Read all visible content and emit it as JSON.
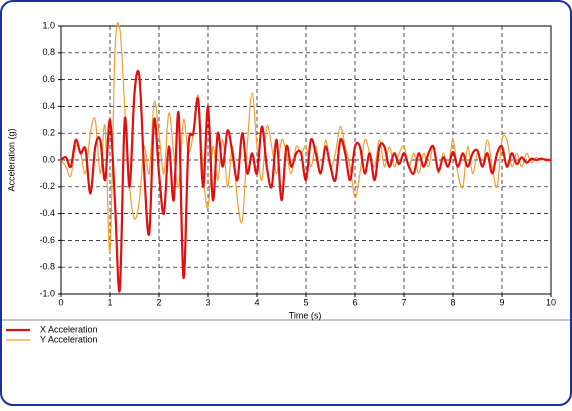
{
  "chart_data": {
    "type": "line",
    "x_label": "Time (s)",
    "y_label": "Acceleration (g)",
    "xlim": [
      0,
      10
    ],
    "ylim": [
      -1.0,
      1.0
    ],
    "xticks": [
      0,
      1,
      2,
      3,
      4,
      5,
      6,
      7,
      8,
      9,
      10
    ],
    "yticks": [
      {
        "value": -1.0,
        "label": "-1.0"
      },
      -0.8,
      -0.6,
      -0.4,
      -0.2,
      {
        "value": 0,
        "label": "0.0"
      },
      0.2,
      0.4,
      0.6,
      0.8,
      {
        "value": 1.0,
        "label": "1.0"
      }
    ],
    "grid": true,
    "legend": "bottom-left",
    "x": [
      0,
      0.1,
      0.2,
      0.3,
      0.4,
      0.5,
      0.6,
      0.7,
      0.8,
      0.9,
      1,
      1.1,
      1.2,
      1.3,
      1.4,
      1.5,
      1.6,
      1.7,
      1.8,
      1.9,
      2,
      2.1,
      2.2,
      2.3,
      2.4,
      2.5,
      2.6,
      2.7,
      2.8,
      2.9,
      3,
      3.1,
      3.2,
      3.3,
      3.4,
      3.5,
      3.6,
      3.7,
      3.8,
      3.9,
      4,
      4.1,
      4.2,
      4.3,
      4.4,
      4.5,
      4.6,
      4.7,
      4.8,
      4.9,
      5,
      5.1,
      5.2,
      5.3,
      5.4,
      5.5,
      5.6,
      5.7,
      5.8,
      5.9,
      6,
      6.1,
      6.2,
      6.3,
      6.4,
      6.5,
      6.6,
      6.7,
      6.8,
      6.9,
      7,
      7.1,
      7.2,
      7.3,
      7.4,
      7.5,
      7.6,
      7.7,
      7.8,
      7.9,
      8,
      8.1,
      8.2,
      8.3,
      8.4,
      8.5,
      8.6,
      8.7,
      8.8,
      8.9,
      9,
      9.1,
      9.2,
      9.3,
      9.4,
      9.5,
      9.6,
      9.7,
      9.8,
      9.9,
      10
    ],
    "series": [
      {
        "name": "X Acceleration",
        "color": "#e01010",
        "width": 2.2,
        "values": [
          0,
          0.02,
          -0.05,
          0.15,
          0.05,
          0.08,
          -0.25,
          0.1,
          0.15,
          -0.15,
          0.3,
          -0.3,
          -0.97,
          0.3,
          -0.2,
          0.5,
          0.62,
          -0.1,
          -0.55,
          0.3,
          -0.1,
          -0.4,
          0.1,
          -0.3,
          0.35,
          -0.88,
          0.1,
          0.2,
          0.45,
          -0.2,
          0.4,
          -0.3,
          0.2,
          -0.05,
          0.22,
          0.05,
          -0.15,
          0.2,
          -0.1,
          0.05,
          -0.1,
          0.25,
          -0.05,
          -0.2,
          0.15,
          -0.3,
          0.1,
          -0.05,
          0.05,
          0.05,
          -0.15,
          0.15,
          0.05,
          -0.1,
          0.1,
          -0.05,
          -0.15,
          0.15,
          0.05,
          -0.15,
          0.1,
          0.1,
          -0.1,
          0.05,
          -0.15,
          0.1,
          0.1,
          -0.05,
          0.05,
          -0.03,
          0.05,
          -0.05,
          -0.1,
          0.05,
          -0.05,
          0.05,
          0.1,
          -0.08,
          0.02,
          -0.05,
          0.06,
          -0.05,
          0.05,
          -0.05,
          0.05,
          0.07,
          -0.05,
          0.05,
          -0.1,
          0.05,
          0.1,
          -0.05,
          0.05,
          -0.03,
          0.02,
          -0.02,
          0.01,
          0,
          0.01,
          0,
          0
        ]
      },
      {
        "name": "Y Acceleration",
        "color": "#f0a030",
        "width": 1.2,
        "values": [
          0,
          -0.05,
          -0.12,
          0.1,
          0.05,
          -0.1,
          0.2,
          0.3,
          -0.1,
          0.25,
          -0.68,
          0.8,
          0.98,
          0.4,
          -0.2,
          -0.44,
          -0.3,
          0.1,
          -0.1,
          0.43,
          0.2,
          -0.1,
          0.35,
          0.05,
          -0.2,
          0.3,
          0.05,
          0.2,
          0.48,
          -0.1,
          -0.35,
          0.1,
          -0.15,
          0.15,
          -0.2,
          0.1,
          -0.3,
          -0.45,
          0.1,
          0.5,
          0.1,
          -0.15,
          0.25,
          0.1,
          -0.1,
          0.15,
          0.05,
          -0.1,
          0.1,
          0.05,
          0.1,
          -0.05,
          0.1,
          -0.1,
          0.15,
          -0.05,
          0.05,
          0.25,
          0.1,
          -0.05,
          -0.28,
          -0.1,
          0.15,
          0.05,
          -0.05,
          0.15,
          -0.05,
          0.1,
          -0.05,
          0.05,
          0.1,
          -0.05,
          0.05,
          -0.1,
          0.05,
          -0.05,
          0.1,
          -0.1,
          0.05,
          -0.05,
          0.15,
          -0.1,
          -0.2,
          0.1,
          -0.1,
          0.05,
          -0.05,
          0.15,
          -0.05,
          -0.2,
          0.15,
          0.15,
          -0.05,
          0.05,
          -0.05,
          0.05,
          -0.02,
          0.02,
          0,
          0.01,
          0
        ]
      }
    ]
  }
}
